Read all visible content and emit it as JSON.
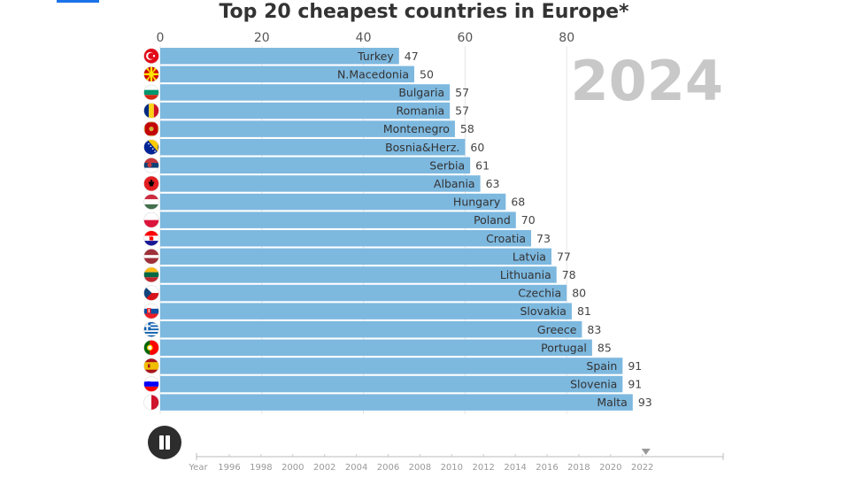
{
  "chart_data": {
    "type": "bar",
    "orientation": "horizontal",
    "title": "Top 20 cheapest countries in Europe*",
    "period_label": "2024",
    "categories": [
      "Turkey",
      "N.Macedonia",
      "Bulgaria",
      "Romania",
      "Montenegro",
      "Bosnia&Herz.",
      "Serbia",
      "Albania",
      "Hungary",
      "Poland",
      "Croatia",
      "Latvia",
      "Lithuania",
      "Czechia",
      "Slovakia",
      "Greece",
      "Portugal",
      "Spain",
      "Slovenia",
      "Malta"
    ],
    "values": [
      47,
      50,
      57,
      57,
      58,
      60,
      61,
      63,
      68,
      70,
      73,
      77,
      78,
      80,
      81,
      83,
      85,
      91,
      91,
      93
    ],
    "flag_icons": [
      "turkey-flag-icon",
      "north-macedonia-flag-icon",
      "bulgaria-flag-icon",
      "romania-flag-icon",
      "montenegro-flag-icon",
      "bosnia-flag-icon",
      "serbia-flag-icon",
      "albania-flag-icon",
      "hungary-flag-icon",
      "poland-flag-icon",
      "croatia-flag-icon",
      "latvia-flag-icon",
      "lithuania-flag-icon",
      "czechia-flag-icon",
      "slovakia-flag-icon",
      "greece-flag-icon",
      "portugal-flag-icon",
      "spain-flag-icon",
      "slovenia-flag-icon",
      "malta-flag-icon"
    ],
    "xticks": [
      0,
      20,
      40,
      60,
      80
    ],
    "xlim": [
      0,
      110
    ],
    "grid": true,
    "bar_color": "#7db8df"
  },
  "timeline": {
    "label": "Year",
    "years": [
      "1996",
      "1998",
      "2000",
      "2002",
      "2004",
      "2006",
      "2008",
      "2010",
      "2012",
      "2014",
      "2016",
      "2018",
      "2020",
      "2022"
    ],
    "current_marker_year": "2022"
  },
  "controls": {
    "pause_icon": "pause-icon"
  },
  "colors": {
    "title": "#333333",
    "label": "#333333",
    "grid": "#e6e6e6",
    "year_watermark": "#c8c8c8",
    "timeline": "#999999",
    "accent": "#1a73e8"
  }
}
